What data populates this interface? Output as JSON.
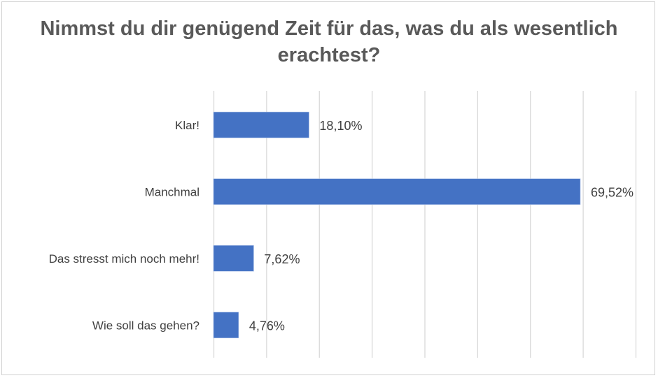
{
  "chart_data": {
    "type": "bar",
    "orientation": "horizontal",
    "title": "Nimmst du dir genügend Zeit für das, was du als wesentlich erachtest?",
    "categories": [
      "Klar!",
      "Manchmal",
      "Das stresst mich noch mehr!",
      "Wie soll das gehen?"
    ],
    "values": [
      18.1,
      69.52,
      7.62,
      4.76
    ],
    "data_labels": [
      "18,10%",
      "69,52%",
      "7,62%",
      "4,76%"
    ],
    "xlim": [
      0,
      80
    ],
    "grid_step": 10,
    "grid": true,
    "legend": "none",
    "bar_color": "#4472C4"
  }
}
